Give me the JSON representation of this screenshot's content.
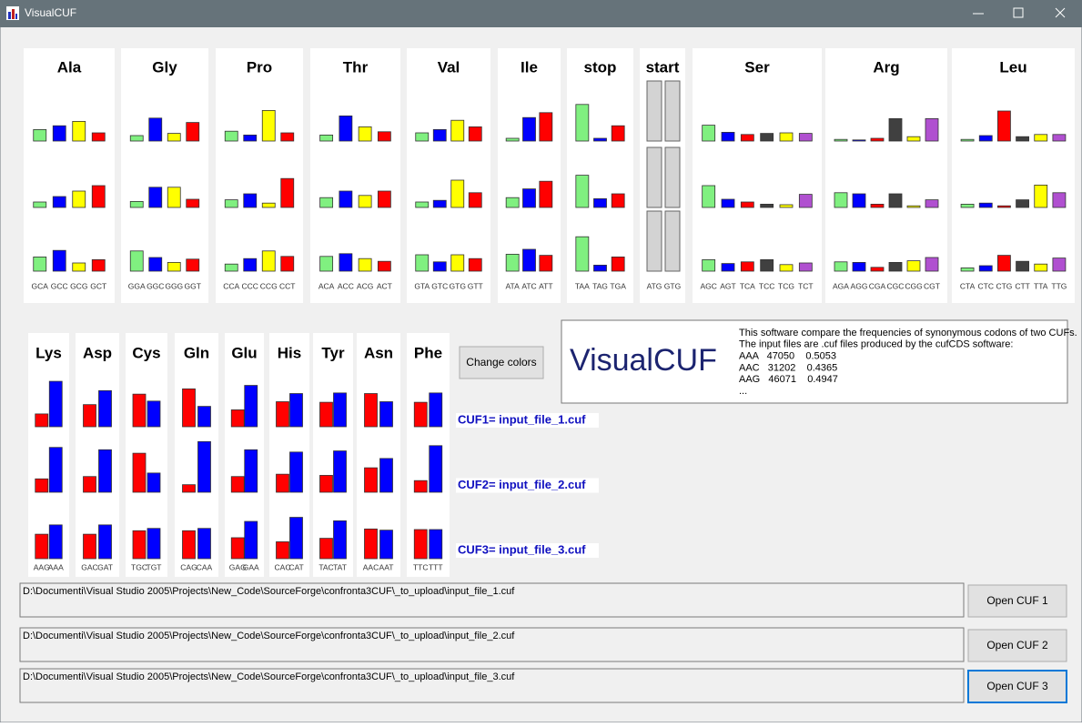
{
  "window": {
    "title": "VisualCUF"
  },
  "panels": [
    {
      "title": "Ala",
      "codons": [
        "GCA",
        "GCC",
        "GCG",
        "GCT"
      ],
      "colors": [
        "#80f080",
        "#0000ff",
        "#ffff00",
        "#ff0000"
      ],
      "rows": [
        [
          0.21,
          0.28,
          0.36,
          0.15
        ],
        [
          0.1,
          0.2,
          0.3,
          0.4
        ],
        [
          0.26,
          0.38,
          0.15,
          0.21
        ]
      ]
    },
    {
      "title": "Gly",
      "codons": [
        "GGA",
        "GGC",
        "GGG",
        "GGT"
      ],
      "colors": [
        "#80f080",
        "#0000ff",
        "#ffff00",
        "#ff0000"
      ],
      "rows": [
        [
          0.1,
          0.42,
          0.14,
          0.34
        ],
        [
          0.11,
          0.37,
          0.37,
          0.15
        ],
        [
          0.37,
          0.25,
          0.16,
          0.22
        ]
      ]
    },
    {
      "title": "Pro",
      "codons": [
        "CCA",
        "CCC",
        "CCG",
        "CCT"
      ],
      "colors": [
        "#80f080",
        "#0000ff",
        "#ffff00",
        "#ff0000"
      ],
      "rows": [
        [
          0.18,
          0.11,
          0.56,
          0.15
        ],
        [
          0.14,
          0.25,
          0.08,
          0.53
        ],
        [
          0.13,
          0.23,
          0.37,
          0.27
        ]
      ]
    },
    {
      "title": "Thr",
      "codons": [
        "ACA",
        "ACC",
        "ACG",
        "ACT"
      ],
      "colors": [
        "#80f080",
        "#0000ff",
        "#ffff00",
        "#ff0000"
      ],
      "rows": [
        [
          0.11,
          0.46,
          0.26,
          0.17
        ],
        [
          0.18,
          0.3,
          0.22,
          0.3
        ],
        [
          0.27,
          0.32,
          0.23,
          0.18
        ]
      ]
    },
    {
      "title": "Val",
      "codons": [
        "GTA",
        "GTC",
        "GTG",
        "GTT"
      ],
      "colors": [
        "#80f080",
        "#0000ff",
        "#ffff00",
        "#ff0000"
      ],
      "rows": [
        [
          0.15,
          0.21,
          0.38,
          0.26
        ],
        [
          0.1,
          0.13,
          0.5,
          0.27
        ],
        [
          0.3,
          0.17,
          0.3,
          0.23
        ]
      ]
    },
    {
      "title": "Ile",
      "codons": [
        "ATA",
        "ATC",
        "ATT"
      ],
      "colors": [
        "#80f080",
        "#0000ff",
        "#ff0000"
      ],
      "rows": [
        [
          0.05,
          0.43,
          0.52
        ],
        [
          0.18,
          0.34,
          0.48
        ],
        [
          0.31,
          0.4,
          0.29
        ]
      ]
    },
    {
      "title": "stop",
      "codons": [
        "TAA",
        "TAG",
        "TGA"
      ],
      "colors": [
        "#80f080",
        "#0000ff",
        "#ff0000"
      ],
      "rows": [
        [
          0.67,
          0.05,
          0.28
        ],
        [
          0.59,
          0.16,
          0.25
        ],
        [
          0.63,
          0.11,
          0.26
        ]
      ]
    },
    {
      "title": "Ser",
      "codons": [
        "AGC",
        "AGT",
        "TCA",
        "TCC",
        "TCG",
        "TCT"
      ],
      "colors": [
        "#80f080",
        "#0000ff",
        "#ff0000",
        "#404040",
        "#ffff00",
        "#b050d0"
      ],
      "rows": [
        [
          0.29,
          0.16,
          0.12,
          0.14,
          0.15,
          0.14
        ],
        [
          0.4,
          0.15,
          0.1,
          0.06,
          0.05,
          0.24
        ],
        [
          0.21,
          0.14,
          0.17,
          0.21,
          0.12,
          0.15
        ]
      ]
    },
    {
      "title": "Arg",
      "codons": [
        "AGA",
        "AGG",
        "CGA",
        "CGC",
        "CGG",
        "CGT"
      ],
      "colors": [
        "#80f080",
        "#0000ff",
        "#ff0000",
        "#404040",
        "#ffff00",
        "#b050d0"
      ],
      "rows": [
        [
          0.03,
          0.02,
          0.05,
          0.41,
          0.08,
          0.41
        ],
        [
          0.27,
          0.25,
          0.06,
          0.25,
          0.03,
          0.14
        ],
        [
          0.17,
          0.16,
          0.07,
          0.16,
          0.19,
          0.25
        ]
      ]
    },
    {
      "title": "Leu",
      "codons": [
        "CTA",
        "CTC",
        "CTG",
        "CTT",
        "TTA",
        "TTG"
      ],
      "colors": [
        "#80f080",
        "#0000ff",
        "#ff0000",
        "#404040",
        "#ffff00",
        "#b050d0"
      ],
      "rows": [
        [
          0.03,
          0.1,
          0.55,
          0.08,
          0.12,
          0.12
        ],
        [
          0.06,
          0.08,
          0.03,
          0.14,
          0.41,
          0.27
        ],
        [
          0.06,
          0.1,
          0.29,
          0.18,
          0.13,
          0.24
        ]
      ]
    }
  ],
  "start_panel": {
    "title": "start",
    "codons": [
      "ATG",
      "GTG"
    ]
  },
  "pair_panels": [
    {
      "title": "Lys",
      "codons": [
        "AAG",
        "AAA"
      ],
      "colors": [
        "#ff0000",
        "#0000ff"
      ],
      "rows": [
        [
          0.22,
          0.78
        ],
        [
          0.23,
          0.77
        ],
        [
          0.42,
          0.58
        ]
      ]
    },
    {
      "title": "Asp",
      "codons": [
        "GAC",
        "GAT"
      ],
      "colors": [
        "#ff0000",
        "#0000ff"
      ],
      "rows": [
        [
          0.38,
          0.62
        ],
        [
          0.27,
          0.73
        ],
        [
          0.42,
          0.58
        ]
      ]
    },
    {
      "title": "Cys",
      "codons": [
        "TGC",
        "TGT"
      ],
      "colors": [
        "#ff0000",
        "#0000ff"
      ],
      "rows": [
        [
          0.56,
          0.44
        ],
        [
          0.67,
          0.33
        ],
        [
          0.48,
          0.52
        ]
      ]
    },
    {
      "title": "Gln",
      "codons": [
        "CAG",
        "CAA"
      ],
      "colors": [
        "#ff0000",
        "#0000ff"
      ],
      "rows": [
        [
          0.65,
          0.35
        ],
        [
          0.13,
          0.87
        ],
        [
          0.48,
          0.52
        ]
      ]
    },
    {
      "title": "Glu",
      "codons": [
        "GAG",
        "GAA"
      ],
      "colors": [
        "#ff0000",
        "#0000ff"
      ],
      "rows": [
        [
          0.29,
          0.71
        ],
        [
          0.27,
          0.73
        ],
        [
          0.36,
          0.64
        ]
      ]
    },
    {
      "title": "His",
      "codons": [
        "CAC",
        "CAT"
      ],
      "colors": [
        "#ff0000",
        "#0000ff"
      ],
      "rows": [
        [
          0.43,
          0.57
        ],
        [
          0.31,
          0.69
        ],
        [
          0.29,
          0.71
        ]
      ]
    },
    {
      "title": "Tyr",
      "codons": [
        "TAC",
        "TAT"
      ],
      "colors": [
        "#ff0000",
        "#0000ff"
      ],
      "rows": [
        [
          0.42,
          0.58
        ],
        [
          0.29,
          0.71
        ],
        [
          0.35,
          0.65
        ]
      ]
    },
    {
      "title": "Asn",
      "codons": [
        "AAC",
        "AAT"
      ],
      "colors": [
        "#ff0000",
        "#0000ff"
      ],
      "rows": [
        [
          0.57,
          0.43
        ],
        [
          0.42,
          0.58
        ],
        [
          0.51,
          0.49
        ]
      ]
    },
    {
      "title": "Phe",
      "codons": [
        "TTC",
        "TTT"
      ],
      "colors": [
        "#ff0000",
        "#0000ff"
      ],
      "rows": [
        [
          0.42,
          0.58
        ],
        [
          0.2,
          0.8
        ],
        [
          0.5,
          0.5
        ]
      ]
    }
  ],
  "change_colors_button": "Change colors",
  "info": {
    "logo": "VisualCUF",
    "lines": [
      "This software compare the frequencies of synonymous codons of two CUFs.",
      "The input files are .cuf files produced by the cufCDS software:",
      "AAA   47050    0.5053",
      "AAC   31202    0.4365",
      "AAG   46071    0.4947",
      "..."
    ]
  },
  "cuf_labels": [
    "CUF1= input_file_1.cuf",
    "CUF2= input_file_2.cuf",
    "CUF3= input_file_3.cuf"
  ],
  "files": [
    {
      "path": "D:\\Documenti\\Visual Studio 2005\\Projects\\New_Code\\SourceForge\\confronta3CUF\\_to_upload\\input_file_1.cuf",
      "button": "Open CUF 1"
    },
    {
      "path": "D:\\Documenti\\Visual Studio 2005\\Projects\\New_Code\\SourceForge\\confronta3CUF\\_to_upload\\input_file_2.cuf",
      "button": "Open CUF 2"
    },
    {
      "path": "D:\\Documenti\\Visual Studio 2005\\Projects\\New_Code\\SourceForge\\confronta3CUF\\_to_upload\\input_file_3.cuf",
      "button": "Open CUF 3"
    }
  ]
}
